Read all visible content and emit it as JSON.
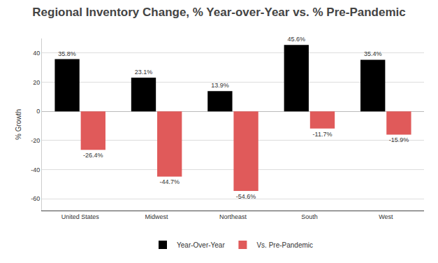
{
  "chart_data": {
    "type": "bar",
    "title": "Regional Inventory Change, % Year-over-Year vs. % Pre-Pandemic",
    "y_label": "% Growth",
    "categories": [
      "United States",
      "Midwest",
      "Northeast",
      "South",
      "West"
    ],
    "series": [
      {
        "name": "Year-Over-Year",
        "color": "#000000",
        "values": [
          35.8,
          23.1,
          13.9,
          45.6,
          35.4
        ],
        "value_labels": [
          "35.8%",
          "23.1%",
          "13.9%",
          "45.6%",
          "35.4%"
        ]
      },
      {
        "name": "Vs. Pre-Pandemic",
        "color": "#e05a5a",
        "values": [
          -26.4,
          -44.7,
          -54.6,
          -11.7,
          -15.9
        ],
        "value_labels": [
          "-26.4%",
          "-44.7%",
          "-54.6%",
          "-11.7%",
          "-15.9%"
        ]
      }
    ],
    "ylim": [
      -68,
      50
    ],
    "yticks": [
      -60,
      -40,
      -20,
      0,
      20,
      40
    ],
    "grid": true,
    "legend": "bottom",
    "data_labels": true
  }
}
